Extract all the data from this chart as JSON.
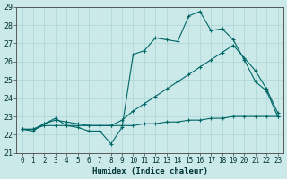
{
  "xlabel": "Humidex (Indice chaleur)",
  "xlim": [
    -0.5,
    23.5
  ],
  "ylim": [
    21,
    29
  ],
  "yticks": [
    21,
    22,
    23,
    24,
    25,
    26,
    27,
    28,
    29
  ],
  "xticks": [
    0,
    1,
    2,
    3,
    4,
    5,
    6,
    7,
    8,
    9,
    10,
    11,
    12,
    13,
    14,
    15,
    16,
    17,
    18,
    19,
    20,
    21,
    22,
    23
  ],
  "bg_color": "#cce9e9",
  "grid_color": "#b0d8d8",
  "line_color": "#006666",
  "line1_y": [
    22.3,
    22.2,
    22.6,
    22.9,
    22.5,
    22.4,
    22.2,
    22.2,
    21.5,
    22.4,
    26.4,
    26.6,
    27.3,
    27.2,
    27.1,
    28.5,
    28.75,
    27.7,
    27.8,
    27.2,
    26.1,
    24.9,
    24.4,
    23.0
  ],
  "line2_y": [
    22.3,
    22.3,
    22.6,
    22.8,
    22.7,
    22.6,
    22.5,
    22.5,
    22.5,
    22.8,
    23.3,
    23.7,
    24.1,
    24.5,
    24.9,
    25.3,
    25.7,
    26.1,
    26.5,
    26.9,
    26.2,
    25.5,
    24.5,
    23.2
  ],
  "line3_y": [
    22.3,
    22.3,
    22.5,
    22.5,
    22.5,
    22.5,
    22.5,
    22.5,
    22.5,
    22.5,
    22.5,
    22.6,
    22.6,
    22.7,
    22.7,
    22.8,
    22.8,
    22.9,
    22.9,
    23.0,
    23.0,
    23.0,
    23.0,
    23.0
  ]
}
